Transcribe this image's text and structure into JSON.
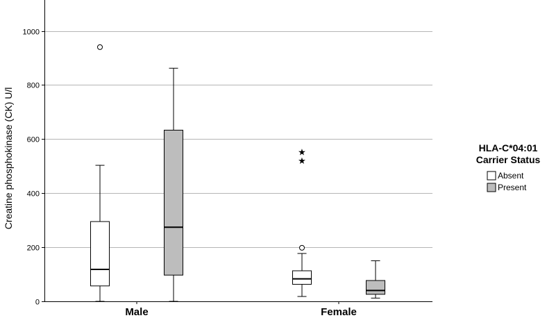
{
  "chart_data": {
    "type": "boxplot",
    "ylabel": "Creatine phosphokinase (CK) U/l",
    "ylim": [
      0,
      1100
    ],
    "yticks": [
      0,
      200,
      400,
      600,
      800,
      1000
    ],
    "grid": true,
    "categories": [
      "Male",
      "Female"
    ],
    "legend": {
      "title_line1": "HLA-C*04:01",
      "title_line2": "Carrier Status",
      "placement": "right",
      "entries": [
        {
          "label": "Absent",
          "color": "#ffffff"
        },
        {
          "label": "Present",
          "color": "#bdbdbd"
        }
      ]
    },
    "series": [
      {
        "name": "Absent",
        "color": "#ffffff",
        "boxes": [
          {
            "category": "Male",
            "min": 0,
            "q1": 57,
            "median": 118,
            "q3": 295,
            "max": 503,
            "outliers": [
              {
                "value": 940,
                "marker": "circle"
              }
            ]
          },
          {
            "category": "Female",
            "min": 18,
            "q1": 63,
            "median": 83,
            "q3": 113,
            "max": 177,
            "outliers": [
              {
                "value": 198,
                "marker": "circle"
              },
              {
                "value": 521,
                "marker": "star"
              },
              {
                "value": 553,
                "marker": "star"
              }
            ]
          }
        ]
      },
      {
        "name": "Present",
        "color": "#bdbdbd",
        "boxes": [
          {
            "category": "Male",
            "min": 0,
            "q1": 97,
            "median": 274,
            "q3": 633,
            "max": 862,
            "outliers": []
          },
          {
            "category": "Female",
            "min": 12,
            "q1": 26,
            "median": 40,
            "q3": 77,
            "max": 150,
            "outliers": []
          }
        ]
      }
    ]
  }
}
